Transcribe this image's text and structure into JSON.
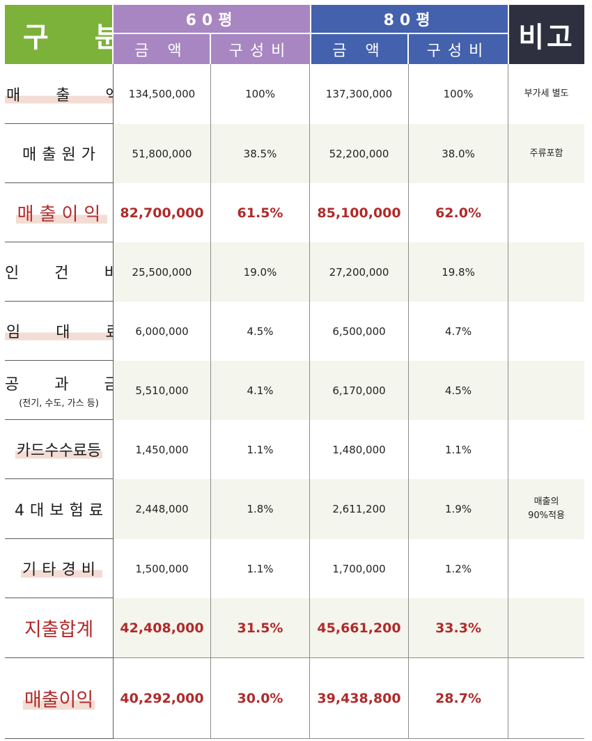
{
  "header": {
    "gubun": "구 분",
    "bigo": "비고",
    "group60": "60평",
    "group80": "80평",
    "amount_label": "금 액",
    "ratio_label": "구성비"
  },
  "rows": [
    {
      "label": "매 출 액",
      "amt60": "134,500,000",
      "pct60": "100%",
      "amt80": "137,300,000",
      "pct80": "100%",
      "note": "부가세 별도"
    },
    {
      "label": "매출원가",
      "amt60": "51,800,000",
      "pct60": "38.5%",
      "amt80": "52,200,000",
      "pct80": "38.0%",
      "note": "주류포함"
    },
    {
      "label": "매출이익",
      "amt60": "82,700,000",
      "pct60": "61.5%",
      "amt80": "85,100,000",
      "pct80": "62.0%",
      "note": ""
    },
    {
      "label": "인 건 비",
      "amt60": "25,500,000",
      "pct60": "19.0%",
      "amt80": "27,200,000",
      "pct80": "19.8%",
      "note": ""
    },
    {
      "label": "임 대 료",
      "amt60": "6,000,000",
      "pct60": "4.5%",
      "amt80": "6,500,000",
      "pct80": "4.7%",
      "note": ""
    },
    {
      "label": "공 과 금",
      "sublabel": "(전기, 수도, 가스 등)",
      "amt60": "5,510,000",
      "pct60": "4.1%",
      "amt80": "6,170,000",
      "pct80": "4.5%",
      "note": ""
    },
    {
      "label": "카드수수료등",
      "amt60": "1,450,000",
      "pct60": "1.1%",
      "amt80": "1,480,000",
      "pct80": "1.1%",
      "note": ""
    },
    {
      "label": "4대보험료",
      "amt60": "2,448,000",
      "pct60": "1.8%",
      "amt80": "2,611,200",
      "pct80": "1.9%",
      "note_line1": "매출의",
      "note_line2": "90%적용"
    },
    {
      "label": "기타경비",
      "amt60": "1,500,000",
      "pct60": "1.1%",
      "amt80": "1,700,000",
      "pct80": "1.2%",
      "note": ""
    },
    {
      "label": "지출합계",
      "amt60": "42,408,000",
      "pct60": "31.5%",
      "amt80": "45,661,200",
      "pct80": "33.3%",
      "note": ""
    },
    {
      "label": "매출이익",
      "amt60": "40,292,000",
      "pct60": "30.0%",
      "amt80": "39,438,800",
      "pct80": "28.7%",
      "note": ""
    }
  ],
  "colors": {
    "gubun_header": "#7cb13a",
    "bigo_header": "#2e3040",
    "group60_header": "#a886c1",
    "group80_header": "#4361ad",
    "highlight_text": "#b02a2a",
    "row_shade": "#f4f5ec",
    "label_underline": "#f2dcd4"
  }
}
